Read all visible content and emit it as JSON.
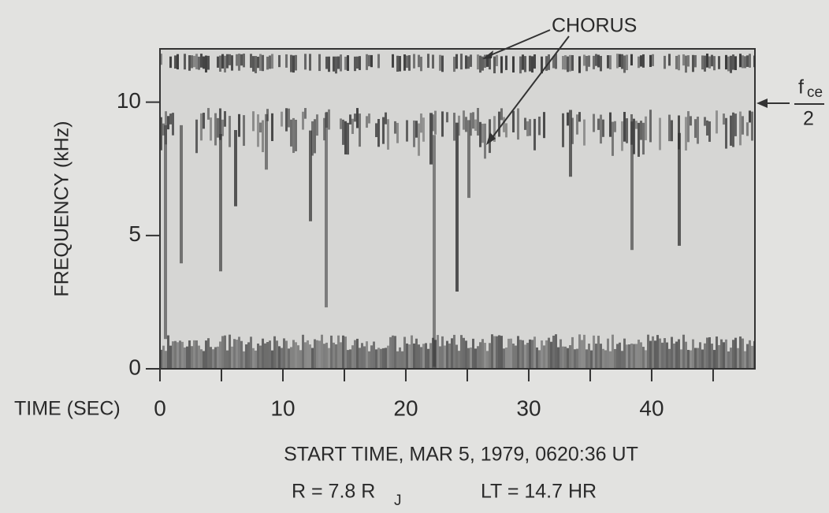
{
  "chart_data": {
    "type": "spectrogram",
    "xlabel": "TIME (SEC)",
    "ylabel": "FREQUENCY (kHz)",
    "xlim": [
      0,
      48.4
    ],
    "ylim": [
      0,
      12
    ],
    "xticks": [
      0,
      10,
      20,
      30,
      40
    ],
    "xminor_ticks": [
      5,
      15,
      25,
      35,
      45
    ],
    "yticks": [
      0,
      5,
      10
    ],
    "annotations": {
      "chorus": "CHORUS",
      "fce_symbol": "f",
      "fce_subscript": "ce",
      "fce_denominator": "2"
    },
    "caption": {
      "line1": "START TIME,    MAR 5, 1979,    0620:36 UT",
      "radius": "R = 7.8 R",
      "radius_subscript": "J",
      "local_time": "LT = 14.7 HR"
    }
  }
}
